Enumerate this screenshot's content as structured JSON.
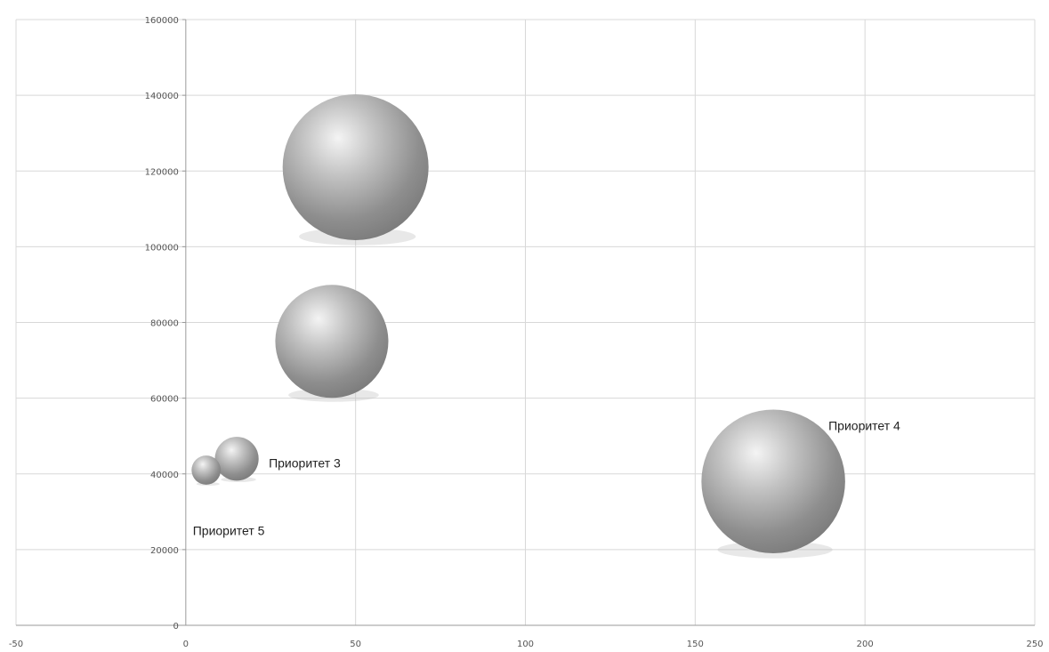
{
  "chart_data": {
    "type": "bubble",
    "xlim": [
      -50,
      250
    ],
    "ylim": [
      0,
      160000
    ],
    "x_ticks": [
      "-50",
      "0",
      "50",
      "100",
      "150",
      "200",
      "250"
    ],
    "y_ticks": [
      "0",
      "20000",
      "40000",
      "60000",
      "80000",
      "100000",
      "120000",
      "140000",
      "160000"
    ],
    "grid": true,
    "legend": "none",
    "bubble_color": "#9a9a9a",
    "points": [
      {
        "x": 50,
        "y": 121000,
        "size": 100,
        "label": ""
      },
      {
        "x": 43,
        "y": 75000,
        "size": 60,
        "label": ""
      },
      {
        "x": 15,
        "y": 44000,
        "size": 9,
        "label": "Приоритет 3"
      },
      {
        "x": 6,
        "y": 41000,
        "size": 4,
        "label": "Приоритет 5"
      },
      {
        "x": 173,
        "y": 38000,
        "size": 97,
        "label": "Приоритет 4"
      }
    ]
  }
}
